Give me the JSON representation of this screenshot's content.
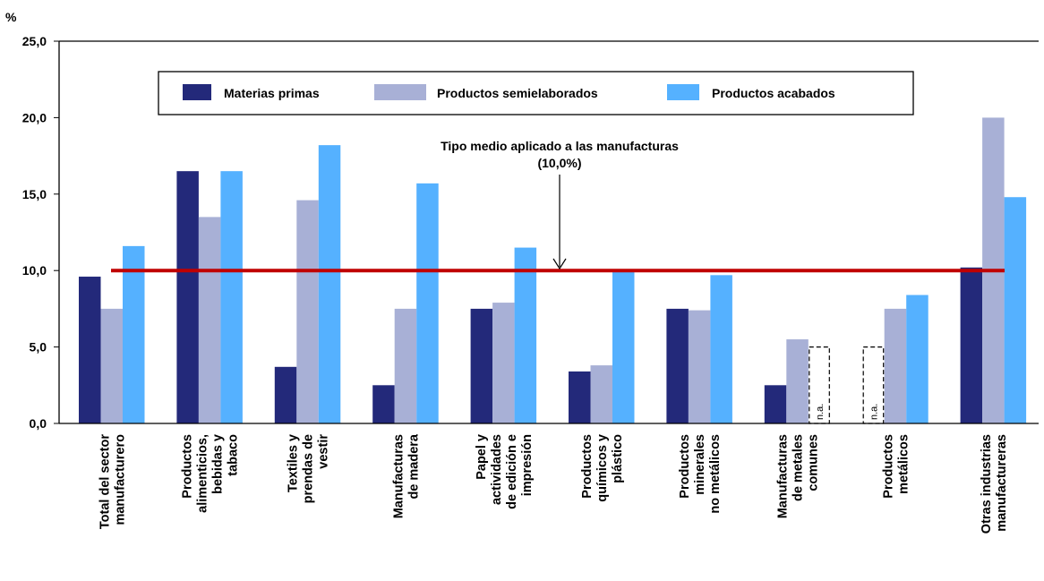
{
  "chart_data": {
    "type": "bar",
    "ylabel": "%",
    "ylim": [
      0,
      25
    ],
    "yticks": [
      "0,0",
      "5,0",
      "10,0",
      "15,0",
      "20,0",
      "25,0"
    ],
    "categories": [
      [
        "Total del sector",
        "manufacturero"
      ],
      [
        "Productos",
        "alimenticios,",
        "bebidas y",
        "tabaco"
      ],
      [
        "Textiles y",
        "prendas de",
        "vestir"
      ],
      [
        "Manufacturas",
        "de madera"
      ],
      [
        "Papel y",
        "actividades",
        "de edición e",
        "impresión"
      ],
      [
        "Productos",
        "químicos y",
        "plástico"
      ],
      [
        "Productos",
        "minerales",
        "no metálicos"
      ],
      [
        "Manufacturas",
        "de metales",
        "comunes"
      ],
      [
        "Productos",
        "metálicos"
      ],
      [
        "Otras industrias",
        "manufactureras"
      ]
    ],
    "series": [
      {
        "name": "Materias primas",
        "color": "#23297a",
        "values": [
          9.6,
          16.5,
          3.7,
          2.5,
          7.5,
          3.4,
          7.5,
          2.5,
          null,
          10.2
        ]
      },
      {
        "name": "Productos semielaborados",
        "color": "#a8b0d6",
        "values": [
          7.5,
          13.5,
          14.6,
          7.5,
          7.9,
          3.8,
          7.4,
          5.5,
          7.5,
          20.0
        ]
      },
      {
        "name": "Productos acabados",
        "color": "#55b1ff",
        "values": [
          11.6,
          16.5,
          18.2,
          15.7,
          11.5,
          10.0,
          9.7,
          null,
          8.4,
          14.8
        ]
      }
    ],
    "not_available": {
      "label": "n.a.",
      "cells": [
        [
          7,
          2
        ],
        [
          8,
          0
        ]
      ]
    },
    "reference_line": {
      "value": 10.0,
      "color": "#c00000",
      "label_line1": "Tipo medio aplicado a las manufacturas",
      "label_line2": "(10,0%)"
    },
    "legend_position": "top-center",
    "grid": false
  }
}
